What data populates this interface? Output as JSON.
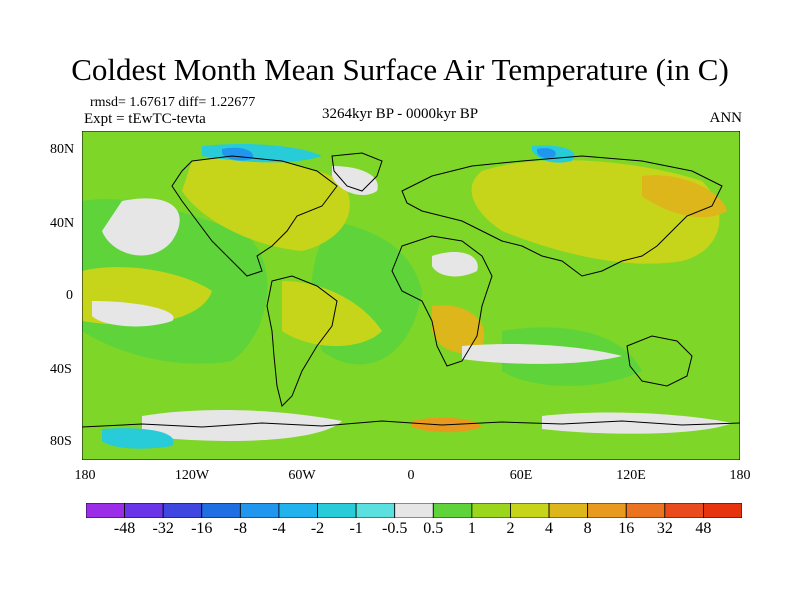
{
  "title": "Coldest Month Mean Surface Air Temperature (in C)",
  "stats": "rmsd= 1.67617 diff= 1.22677",
  "experiment": "Expt = tEwTC-tevta",
  "period": "3264kyr BP - 0000kyr BP",
  "season": "ANN",
  "lat_labels": [
    "80N",
    "40N",
    "0",
    "40S",
    "80S"
  ],
  "lon_labels": [
    "180",
    "120W",
    "60W",
    "0",
    "60E",
    "120E",
    "180"
  ],
  "colorbar": {
    "labels": [
      "-48",
      "-32",
      "-16",
      "-8",
      "-4",
      "-2",
      "-1",
      "-0.5",
      "0.5",
      "1",
      "2",
      "4",
      "8",
      "16",
      "32",
      "48"
    ],
    "colors": [
      "#9b2de8",
      "#6a35e8",
      "#3f47e0",
      "#1f6ee2",
      "#2196ee",
      "#22b3ef",
      "#28ccd8",
      "#5be0df",
      "#e6e6e6",
      "#5fd43a",
      "#9ad61c",
      "#c6d51a",
      "#dcb61a",
      "#e89a1f",
      "#eb7421",
      "#ea4b1c",
      "#e6340f"
    ]
  },
  "colors": {
    "map_base": "#7ed628",
    "map_green": "#5fd43a",
    "map_yellow": "#c6d51a",
    "map_orange": "#dcb61a",
    "map_white": "#e6e6e6",
    "map_cyan": "#28ccd8",
    "map_blue": "#2196ee"
  }
}
